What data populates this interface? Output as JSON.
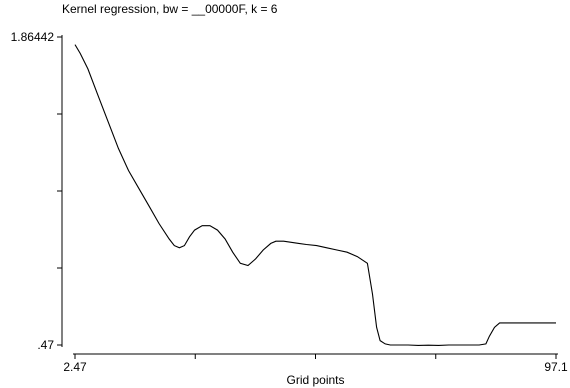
{
  "chart_data": {
    "type": "line",
    "title": "Kernel regression, bw = __00000F, k = 6",
    "xlabel": "Grid points",
    "ylabel": "",
    "xlim": [
      2.47,
      97.1
    ],
    "ylim": [
      0.47,
      1.86442
    ],
    "x_tick_labels": [
      "2.47",
      "97.1"
    ],
    "y_tick_labels": [
      "1.86442",
      ".47"
    ],
    "grid": false,
    "series": [
      {
        "x": [
          2.47,
          3.5,
          5.0,
          7.0,
          9.0,
          11.0,
          13.0,
          15.0,
          17.0,
          19.0,
          21.0,
          22.0,
          23.0,
          24.0,
          25.0,
          26.0,
          27.5,
          29.0,
          30.5,
          32.0,
          33.5,
          35.0,
          36.5,
          38.0,
          39.5,
          41.0,
          42.0,
          43.5,
          45.0,
          46.5,
          48.0,
          50.0,
          52.0,
          54.0,
          56.0,
          58.0,
          60.0,
          61.0,
          61.8,
          62.5,
          63.5,
          64.5,
          66.0,
          68.0,
          70.0,
          72.0,
          74.0,
          76.0,
          78.0,
          80.0,
          82.0,
          83.3,
          84.0,
          85.0,
          86.0,
          88.0,
          92.0,
          97.1
        ],
        "y": [
          1.83,
          1.79,
          1.72,
          1.6,
          1.48,
          1.36,
          1.26,
          1.18,
          1.1,
          1.02,
          0.95,
          0.92,
          0.91,
          0.92,
          0.96,
          0.99,
          1.01,
          1.01,
          0.99,
          0.95,
          0.89,
          0.84,
          0.83,
          0.86,
          0.9,
          0.93,
          0.94,
          0.94,
          0.935,
          0.93,
          0.925,
          0.92,
          0.91,
          0.9,
          0.89,
          0.87,
          0.84,
          0.7,
          0.55,
          0.49,
          0.475,
          0.47,
          0.47,
          0.47,
          0.468,
          0.469,
          0.468,
          0.47,
          0.47,
          0.47,
          0.47,
          0.475,
          0.51,
          0.55,
          0.57,
          0.57,
          0.57,
          0.57
        ]
      }
    ]
  }
}
